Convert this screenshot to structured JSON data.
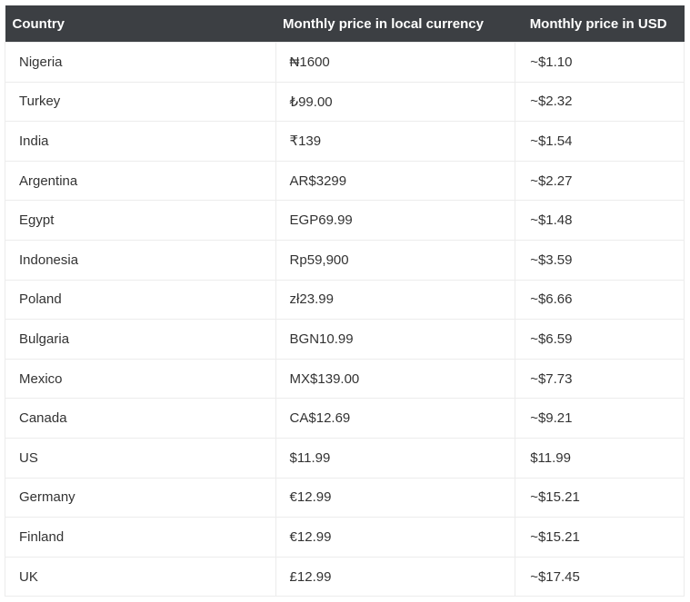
{
  "table": {
    "header": [
      "Country",
      "Monthly price in local currency",
      "Monthly price in USD"
    ],
    "rows": [
      [
        "Nigeria",
        "₦1600",
        "~$1.10"
      ],
      [
        "Turkey",
        "₺99.00",
        "~$2.32"
      ],
      [
        "India",
        "₹139",
        "~$1.54"
      ],
      [
        "Argentina",
        "AR$3299",
        "~$2.27"
      ],
      [
        "Egypt",
        "EGP69.99",
        "~$1.48"
      ],
      [
        "Indonesia",
        "Rp59,900",
        "~$3.59"
      ],
      [
        "Poland",
        "zł23.99",
        "~$6.66"
      ],
      [
        "Bulgaria",
        "BGN10.99",
        "~$6.59"
      ],
      [
        "Mexico",
        "MX$139.00",
        "~$7.73"
      ],
      [
        "Canada",
        "CA$12.69",
        "~$9.21"
      ],
      [
        "US",
        "$11.99",
        "$11.99"
      ],
      [
        "Germany",
        "€12.99",
        "~$15.21"
      ],
      [
        "Finland",
        "€12.99",
        "~$15.21"
      ],
      [
        "UK",
        "£12.99",
        "~$17.45"
      ]
    ]
  }
}
